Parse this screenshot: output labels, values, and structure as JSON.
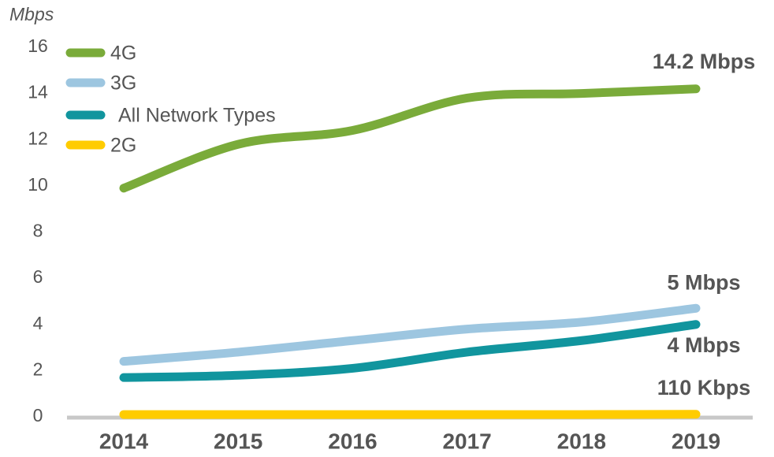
{
  "chart_data": {
    "type": "line",
    "y_axis_label": "Mbps",
    "categories": [
      "2014",
      "2015",
      "2016",
      "2017",
      "2018",
      "2019"
    ],
    "series": [
      {
        "name": "4G",
        "color": "#7aab3a",
        "values": [
          9.9,
          11.8,
          12.4,
          13.8,
          14.0,
          14.2
        ],
        "end_label": "14.2 Mbps"
      },
      {
        "name": "3G",
        "color": "#9dc6e0",
        "values": [
          2.4,
          2.8,
          3.3,
          3.8,
          4.1,
          4.7
        ],
        "end_label": "5 Mbps"
      },
      {
        "name": "All Network Types",
        "color": "#11959e",
        "values": [
          1.7,
          1.8,
          2.1,
          2.8,
          3.3,
          4.0
        ],
        "end_label": "4 Mbps"
      },
      {
        "name": "2G",
        "color": "#ffcc00",
        "values": [
          0.1,
          0.1,
          0.1,
          0.1,
          0.1,
          0.11
        ],
        "end_label": "110 Kbps"
      }
    ],
    "ylim": [
      0,
      16
    ],
    "yticks": [
      0,
      2,
      4,
      6,
      8,
      10,
      12,
      14,
      16
    ],
    "legend": "upper left"
  }
}
